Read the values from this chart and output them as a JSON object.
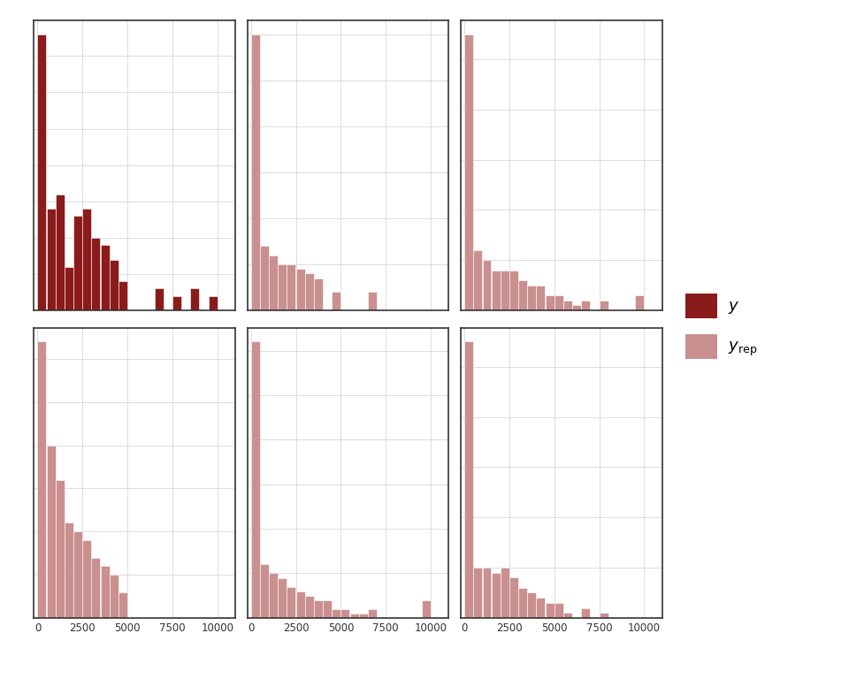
{
  "color_y": "#8B1A1A",
  "color_yrep": "#C9908F",
  "background_color": "#FFFFFF",
  "grid_color": "#DCDCDC",
  "panel_bg": "#FFFFFF",
  "xlim": [
    -200,
    11000
  ],
  "xticks": [
    0,
    2500,
    5000,
    7500,
    10000
  ],
  "bin_width": 500,
  "bin_starts": [
    0,
    500,
    1000,
    1500,
    2000,
    2500,
    3000,
    3500,
    4000,
    4500,
    5000,
    5500,
    6000,
    6500,
    7000,
    7500,
    8000,
    8500,
    9000,
    9500
  ],
  "histograms": {
    "y": [
      38,
      14,
      16,
      6,
      13,
      14,
      10,
      9,
      7,
      4,
      0,
      0,
      0,
      3,
      0,
      2,
      0,
      3,
      0,
      2
    ],
    "yrep1": [
      60,
      14,
      12,
      10,
      10,
      9,
      8,
      7,
      0,
      4,
      0,
      0,
      0,
      4,
      0,
      0,
      0,
      0,
      0,
      0
    ],
    "yrep2": [
      55,
      12,
      10,
      8,
      8,
      8,
      6,
      5,
      5,
      3,
      3,
      2,
      1,
      2,
      0,
      2,
      0,
      0,
      0,
      3
    ],
    "yrep3": [
      32,
      20,
      16,
      11,
      10,
      9,
      7,
      6,
      5,
      3,
      0,
      0,
      0,
      0,
      0,
      0,
      0,
      0,
      0,
      0
    ],
    "yrep4": [
      62,
      12,
      10,
      9,
      7,
      6,
      5,
      4,
      4,
      2,
      2,
      1,
      1,
      2,
      0,
      0,
      0,
      0,
      0,
      4
    ],
    "yrep5": [
      55,
      10,
      10,
      9,
      10,
      8,
      6,
      5,
      4,
      3,
      3,
      1,
      0,
      2,
      0,
      1,
      0,
      0,
      0,
      0
    ]
  },
  "legend_labels": [
    "y",
    "y_rep"
  ],
  "figsize": [
    9.6,
    7.68
  ],
  "dpi": 100,
  "spine_color": "#333333"
}
